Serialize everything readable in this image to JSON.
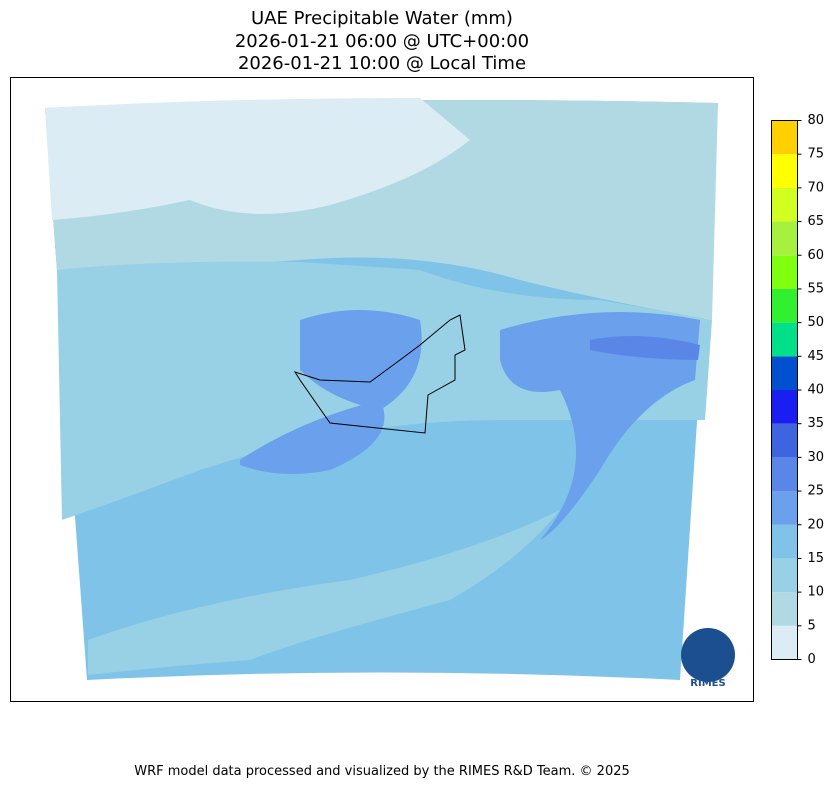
{
  "title": [
    "UAE Precipitable Water (mm)",
    "2026-01-21 06:00 @ UTC+00:00",
    "2026-01-21 10:00 @ Local Time"
  ],
  "colorbar": {
    "levels": [
      0,
      5,
      10,
      15,
      20,
      25,
      30,
      35,
      40,
      45,
      50,
      55,
      60,
      65,
      70,
      75,
      80
    ],
    "colors": [
      "#dcecf4",
      "#b0d9e4",
      "#98d1e5",
      "#80c3e9",
      "#6aa0ec",
      "#5a86e8",
      "#3f64e0",
      "#1a1ef0",
      "#0050d0",
      "#00e08a",
      "#30f030",
      "#80ff10",
      "#a8f040",
      "#d0ff20",
      "#ffff00",
      "#ffd000"
    ]
  },
  "logo": "RIMES",
  "footer": "WRF model data processed and visualized by the RIMES R&D Team. © 2025"
}
